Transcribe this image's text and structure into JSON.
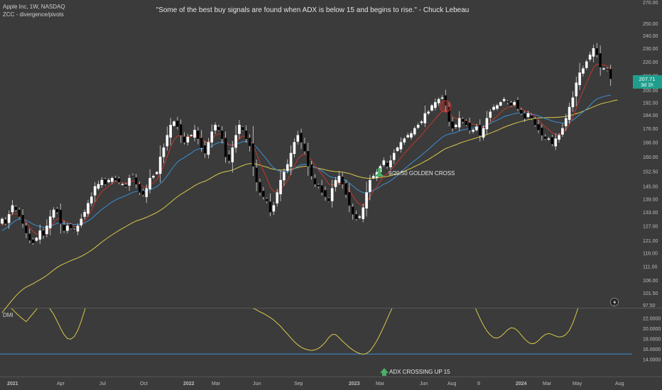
{
  "header": {
    "symbol_line": "Apple Inc, 1W, NASDAQ",
    "indicator_line": "ZCC - divergence/pivots"
  },
  "quote": "\"Some of the best buy signals are found when ADX is below 15 and begins to rise.\" - Chuck Lebeau",
  "dmi_label": "DMI",
  "colors": {
    "background": "#3b3b3b",
    "up_candle": "#ffffff",
    "down_candle": "#000000",
    "ma_fast": "#c0392b",
    "ma_mid": "#3a8fd6",
    "ma_slow": "#d8c94a",
    "adx": "#d8c94a",
    "threshold": "#3a8fd6",
    "arrow": "#4caf6a",
    "price_badge": "#1f9e8c"
  },
  "chart_data": [
    {
      "type": "candlestick",
      "title": "",
      "x_tick_labels": [
        "2021",
        "Apr",
        "Jul",
        "Oct",
        "2022",
        "Mar",
        "Jun",
        "Sep",
        "2023",
        "Mar",
        "Jun",
        "Aug",
        "9",
        "2024",
        "Mar",
        "May",
        "Aug"
      ],
      "y_tick_labels": [
        "97.50",
        "101.50",
        "106.00",
        "111.00",
        "116.00",
        "121.00",
        "127.00",
        "133.00",
        "139.00",
        "145.00",
        "152.50",
        "160.00",
        "168.00",
        "176.00",
        "184.00",
        "192.00",
        "200.00",
        "210.00",
        "220.00",
        "230.00",
        "240.00",
        "250.00",
        "270.00"
      ],
      "y_tick_values": [
        97.5,
        101.5,
        106,
        111,
        116,
        121,
        127,
        133,
        139,
        145,
        152.5,
        160,
        168,
        176,
        184,
        192,
        200,
        210,
        220,
        230,
        240,
        250,
        270
      ],
      "ylim": [
        95,
        280
      ],
      "y_scale": "log",
      "grid": false,
      "weekly_close": [
        130,
        128,
        132,
        136,
        134,
        131,
        128,
        124,
        121,
        120,
        122,
        125,
        123,
        127,
        131,
        134,
        133,
        128,
        125,
        127,
        126,
        125,
        127,
        130,
        133,
        137,
        140,
        145,
        146,
        148,
        146,
        148,
        149,
        148,
        147,
        146,
        145,
        149,
        150,
        146,
        142,
        141,
        144,
        149,
        150,
        152,
        160,
        165,
        172,
        178,
        180,
        177,
        172,
        168,
        171,
        172,
        175,
        170,
        165,
        162,
        168,
        174,
        178,
        175,
        170,
        160,
        158,
        165,
        172,
        178,
        175,
        170,
        166,
        155,
        147,
        142,
        140,
        138,
        133,
        136,
        142,
        148,
        152,
        156,
        162,
        168,
        172,
        168,
        163,
        155,
        150,
        146,
        145,
        142,
        140,
        138,
        144,
        148,
        150,
        146,
        141,
        136,
        132,
        130,
        131,
        135,
        142,
        148,
        150,
        152,
        155,
        158,
        155,
        158,
        162,
        165,
        168,
        170,
        172,
        173,
        176,
        178,
        180,
        185,
        186,
        190,
        192,
        194,
        195,
        190,
        180,
        176,
        178,
        182,
        180,
        178,
        175,
        175,
        177,
        172,
        176,
        182,
        186,
        189,
        190,
        192,
        194,
        192,
        190,
        192,
        188,
        185,
        182,
        185,
        182,
        178,
        175,
        172,
        170,
        170,
        167,
        170,
        172,
        176,
        182,
        189,
        195,
        205,
        212,
        215,
        220,
        225,
        230,
        225,
        216,
        215,
        214,
        207.71
      ],
      "ma_fast": [
        127.0,
        128.7,
        130.7,
        132.2,
        132.3,
        131.8,
        130.5,
        128.4,
        126.5,
        124.6,
        123.5,
        123.9,
        123.3,
        124.4,
        126.5,
        128.5,
        130.0,
        130.2,
        129.0,
        128.6,
        127.8,
        126.8,
        126.6,
        127.6,
        129.2,
        131.4,
        133.9,
        137.2,
        140.0,
        142.6,
        143.8,
        145.2,
        146.4,
        147.2,
        147.1,
        146.8,
        146.4,
        147.0,
        147.7,
        147.3,
        146.0,
        144.8,
        144.4,
        145.5,
        146.8,
        148.2,
        151.5,
        155.3,
        160.1,
        165.2,
        169.4,
        171.6,
        171.9,
        171.0,
        171.0,
        171.3,
        172.2,
        171.8,
        170.2,
        168.2,
        168.1,
        169.6,
        171.9,
        172.8,
        172.3,
        169.2,
        166.5,
        166.2,
        167.6,
        170.3,
        171.6,
        171.2,
        169.9,
        166.4,
        161.7,
        156.9,
        152.7,
        149.0,
        144.8,
        142.4,
        142.3,
        143.6,
        145.4,
        147.9,
        151.3,
        155.1,
        158.8,
        160.8,
        161.6,
        160.3,
        158.1,
        155.5,
        153.3,
        150.9,
        148.6,
        146.1,
        145.6,
        146.0,
        146.8,
        146.6,
        145.2,
        143.0,
        140.4,
        138.1,
        136.4,
        136.0,
        137.4,
        140.0,
        142.5,
        144.9,
        147.4,
        150.0,
        151.2,
        152.9,
        155.0,
        157.2,
        159.5,
        161.8,
        164.0,
        165.9,
        168.0,
        170.1,
        172.0,
        174.6,
        176.8,
        179.3,
        181.8,
        184.1,
        186.2,
        187.1,
        185.4,
        183.0,
        181.8,
        181.8,
        181.4,
        180.6,
        179.5,
        178.5,
        178.2,
        176.9,
        176.6,
        177.7,
        179.5,
        181.6,
        183.4,
        185.4,
        187.5,
        188.6,
        189.1,
        189.9,
        189.5,
        188.3,
        186.6,
        186.1,
        185.0,
        183.1,
        181.0,
        178.8,
        176.8,
        175.2,
        173.4,
        172.6,
        172.5,
        173.3,
        175.2,
        178.4,
        182.4,
        188.4,
        194.5,
        199.6,
        204.9,
        210.2,
        215.6,
        218.2,
        217.9,
        217.4,
        216.9,
        214.6
      ],
      "ma_mid": [
        125.0,
        125.9,
        127.0,
        128.3,
        129.4,
        129.9,
        129.9,
        129.4,
        128.6,
        127.7,
        127.1,
        126.8,
        126.4,
        126.5,
        126.9,
        127.5,
        128.1,
        128.2,
        128.0,
        128.0,
        127.8,
        127.6,
        127.6,
        127.8,
        128.3,
        129.1,
        130.1,
        131.5,
        132.8,
        134.2,
        135.3,
        136.5,
        137.6,
        138.5,
        139.3,
        139.9,
        140.5,
        141.3,
        142.1,
        142.5,
        142.6,
        142.5,
        142.7,
        143.3,
        144.0,
        144.8,
        146.2,
        147.9,
        150.1,
        152.7,
        155.2,
        157.2,
        158.6,
        159.6,
        160.9,
        162.0,
        163.4,
        164.2,
        164.5,
        164.5,
        164.9,
        165.8,
        167.0,
        167.8,
        168.1,
        167.4,
        166.5,
        166.4,
        166.7,
        167.6,
        168.3,
        168.4,
        168.2,
        167.1,
        165.2,
        163.0,
        160.8,
        158.6,
        156.1,
        154.2,
        153.0,
        152.4,
        152.2,
        152.3,
        152.8,
        153.8,
        155.1,
        155.8,
        156.1,
        156.0,
        155.4,
        154.5,
        153.7,
        152.6,
        151.4,
        150.1,
        149.4,
        149.1,
        149.0,
        148.6,
        147.8,
        146.6,
        145.2,
        143.8,
        142.7,
        141.9,
        141.8,
        142.4,
        143.1,
        143.8,
        144.9,
        146.0,
        146.7,
        147.7,
        149.0,
        150.5,
        152.1,
        153.6,
        155.1,
        156.6,
        158.0,
        159.4,
        160.9,
        162.5,
        164.1,
        165.8,
        167.5,
        169.1,
        170.8,
        172.0,
        172.7,
        173.0,
        173.6,
        174.5,
        175.1,
        175.5,
        175.9,
        176.2,
        176.7,
        176.8,
        177.2,
        177.9,
        178.8,
        180.0,
        180.9,
        181.9,
        183.0,
        183.7,
        184.2,
        184.9,
        185.2,
        185.2,
        184.9,
        185.0,
        184.7,
        184.2,
        183.5,
        182.7,
        181.9,
        181.2,
        180.4,
        179.8,
        179.4,
        179.1,
        179.4,
        180.0,
        180.9,
        182.4,
        184.2,
        186.0,
        187.8,
        190.0,
        192.4,
        194.2,
        195.0,
        195.7,
        196.3,
        196.6
      ],
      "ma_slow": [
        95.0,
        96.4,
        97.8,
        99.2,
        100.5,
        101.7,
        102.7,
        103.5,
        104.1,
        104.7,
        105.4,
        106.1,
        106.8,
        107.6,
        108.6,
        109.6,
        110.5,
        111.3,
        111.9,
        112.5,
        113.1,
        113.6,
        114.1,
        114.7,
        115.4,
        116.2,
        117.1,
        118.1,
        119.2,
        120.3,
        121.3,
        122.3,
        123.3,
        124.2,
        125.1,
        125.9,
        126.7,
        127.6,
        128.4,
        129.1,
        129.6,
        130.1,
        130.7,
        131.4,
        132.1,
        132.8,
        133.8,
        134.8,
        136.1,
        137.4,
        138.8,
        140.0,
        141.2,
        142.1,
        143.2,
        144.2,
        145.3,
        146.2,
        146.9,
        147.5,
        148.3,
        149.3,
        150.3,
        151.2,
        151.9,
        152.3,
        152.6,
        153.1,
        153.8,
        154.7,
        155.4,
        156.0,
        156.4,
        156.4,
        156.1,
        155.6,
        155.1,
        154.6,
        153.9,
        153.5,
        153.2,
        153.1,
        153.1,
        153.2,
        153.5,
        153.9,
        154.4,
        154.8,
        155.0,
        155.0,
        154.8,
        154.4,
        154.0,
        153.6,
        153.2,
        152.8,
        152.5,
        152.3,
        152.2,
        152.0,
        151.7,
        151.3,
        150.7,
        150.1,
        149.6,
        149.2,
        149.0,
        148.9,
        148.9,
        149.1,
        149.3,
        149.6,
        149.9,
        150.2,
        150.7,
        151.2,
        151.8,
        152.5,
        153.3,
        154.0,
        154.9,
        155.7,
        156.6,
        157.6,
        158.6,
        159.8,
        160.9,
        162.1,
        163.4,
        164.5,
        165.2,
        165.9,
        166.6,
        167.4,
        168.1,
        168.7,
        169.3,
        169.9,
        170.5,
        171.1,
        171.7,
        172.4,
        173.2,
        174.0,
        174.8,
        175.7,
        176.6,
        177.4,
        178.1,
        178.9,
        179.5,
        180.1,
        180.6,
        181.2,
        181.6,
        181.9,
        182.2,
        182.3,
        182.4,
        182.5,
        182.5,
        182.6,
        182.7,
        182.9,
        183.2,
        183.6,
        184.1,
        184.8,
        185.5,
        186.4,
        187.3,
        188.2,
        189.1,
        190.0,
        190.9,
        191.5,
        192.0,
        192.5,
        193.1,
        193.5
      ],
      "last_price": "207.71",
      "countdown": "3d 1h",
      "annotations": [
        {
          "label": "9/20/50 GOLDEN CROSS",
          "x_index": 113,
          "y": 153
        }
      ]
    },
    {
      "type": "line",
      "title": "",
      "series_name": "",
      "y_tick_labels": [
        "14.0000",
        "16.0000",
        "18.0000",
        "20.0000",
        "22.0000"
      ],
      "y_tick_values": [
        14,
        16,
        18,
        20,
        22
      ],
      "ylim": [
        13,
        23.6
      ],
      "threshold": 15,
      "adx": [
        25.4,
        24.9,
        24.3,
        23.7,
        23.0,
        22.4,
        21.8,
        21.3,
        22.1,
        22.9,
        23.7,
        24.6,
        25.4,
        24.6,
        23.7,
        22.7,
        21.4,
        20.0,
        18.8,
        18.0,
        17.9,
        18.4,
        19.6,
        21.4,
        23.5,
        25.6,
        27.4,
        29.0,
        30.3,
        31.1,
        31.7,
        32.3,
        32.8,
        33.1,
        33.4,
        33.6,
        33.6,
        33.8,
        34.2,
        34.7,
        35.1,
        35.4,
        35.6,
        35.9,
        36.0,
        36.0,
        35.9,
        35.7,
        35.6,
        35.5,
        35.3,
        35.1,
        35.0,
        35.1,
        35.6,
        35.7,
        35.3,
        34.8,
        34.4,
        34.1,
        33.6,
        33.0,
        32.3,
        31.5,
        30.6,
        29.7,
        28.8,
        27.9,
        27.0,
        26.2,
        25.5,
        24.8,
        24.3,
        23.9,
        23.6,
        23.2,
        22.9,
        22.5,
        22.1,
        21.6,
        21.0,
        20.4,
        19.6,
        18.9,
        18.1,
        17.4,
        16.8,
        16.3,
        16.0,
        15.8,
        15.7,
        15.8,
        16.1,
        16.6,
        17.3,
        18.2,
        18.8,
        18.8,
        18.2,
        17.5,
        16.9,
        16.3,
        15.8,
        15.4,
        15.1,
        14.95,
        15.1,
        15.6,
        16.5,
        17.6,
        18.9,
        20.3,
        21.8,
        23.3,
        24.8,
        26.3,
        27.8,
        29.3,
        30.8,
        32.2,
        33.6,
        35.0,
        36.3,
        37.5,
        38.7,
        39.7,
        40.1,
        39.6,
        38.7,
        37.5,
        36.1,
        34.6,
        33.0,
        31.4,
        29.7,
        28.1,
        26.5,
        24.9,
        23.4,
        21.9,
        20.6,
        19.5,
        18.7,
        18.2,
        18.1,
        18.4,
        19.0,
        19.7,
        20.1,
        20.0,
        19.5,
        18.7,
        17.9,
        17.3,
        17.0,
        17.1,
        17.6,
        18.3,
        18.8,
        19.0,
        18.8,
        18.5,
        18.3,
        18.4,
        18.8,
        19.6,
        21.0,
        22.9,
        24.9,
        26.7,
        28.2,
        29.4,
        30.4,
        31.2,
        31.8,
        32.2,
        32.4,
        32.5
      ]
    }
  ],
  "annotations": {
    "golden_cross": "9/20/50 GOLDEN CROSS",
    "adx_cross": "ADX CROSSING UP 15"
  }
}
